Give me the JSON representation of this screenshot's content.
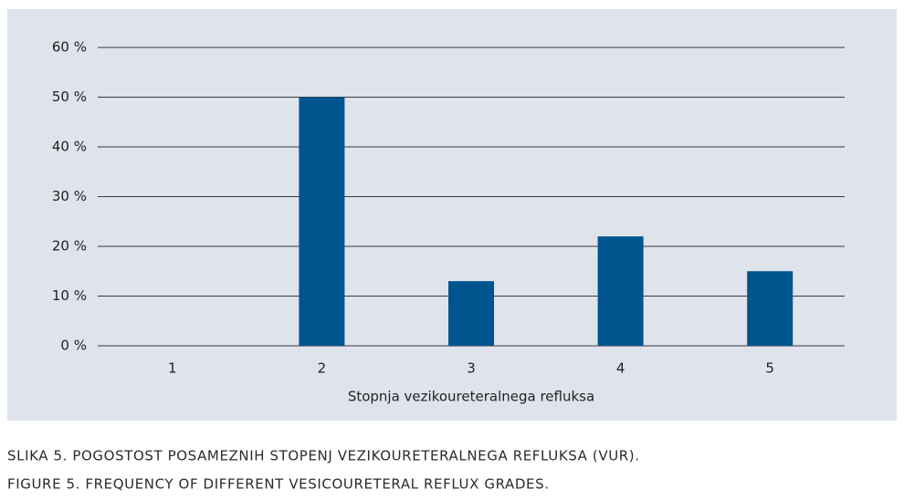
{
  "chart_data": {
    "type": "bar",
    "x_label": "Stopnja vezikoureteralnega refluksa",
    "categories": [
      "1",
      "2",
      "3",
      "4",
      "5"
    ],
    "values": [
      0,
      50,
      13,
      22,
      15
    ],
    "color": "#00558f",
    "ylim": [
      0,
      60
    ],
    "yticks": [
      {
        "value": 0,
        "label": "0 %"
      },
      {
        "value": 10,
        "label": "10 %"
      },
      {
        "value": 20,
        "label": "20 %"
      },
      {
        "value": 30,
        "label": "30 %"
      },
      {
        "value": 40,
        "label": "40 %"
      },
      {
        "value": 50,
        "label": "50 %"
      },
      {
        "value": 60,
        "label": "60 %"
      }
    ],
    "grid": true,
    "captions": [
      "SLIKA 5. POGOSTOST POSAMEZNIH STOPENJ VEZIKOURETERALNEGA REFLUKSA (VUR).",
      "FIGURE 5. FREQUENCY OF DIFFERENT VESICOURETERAL REFLUX GRADES."
    ]
  }
}
